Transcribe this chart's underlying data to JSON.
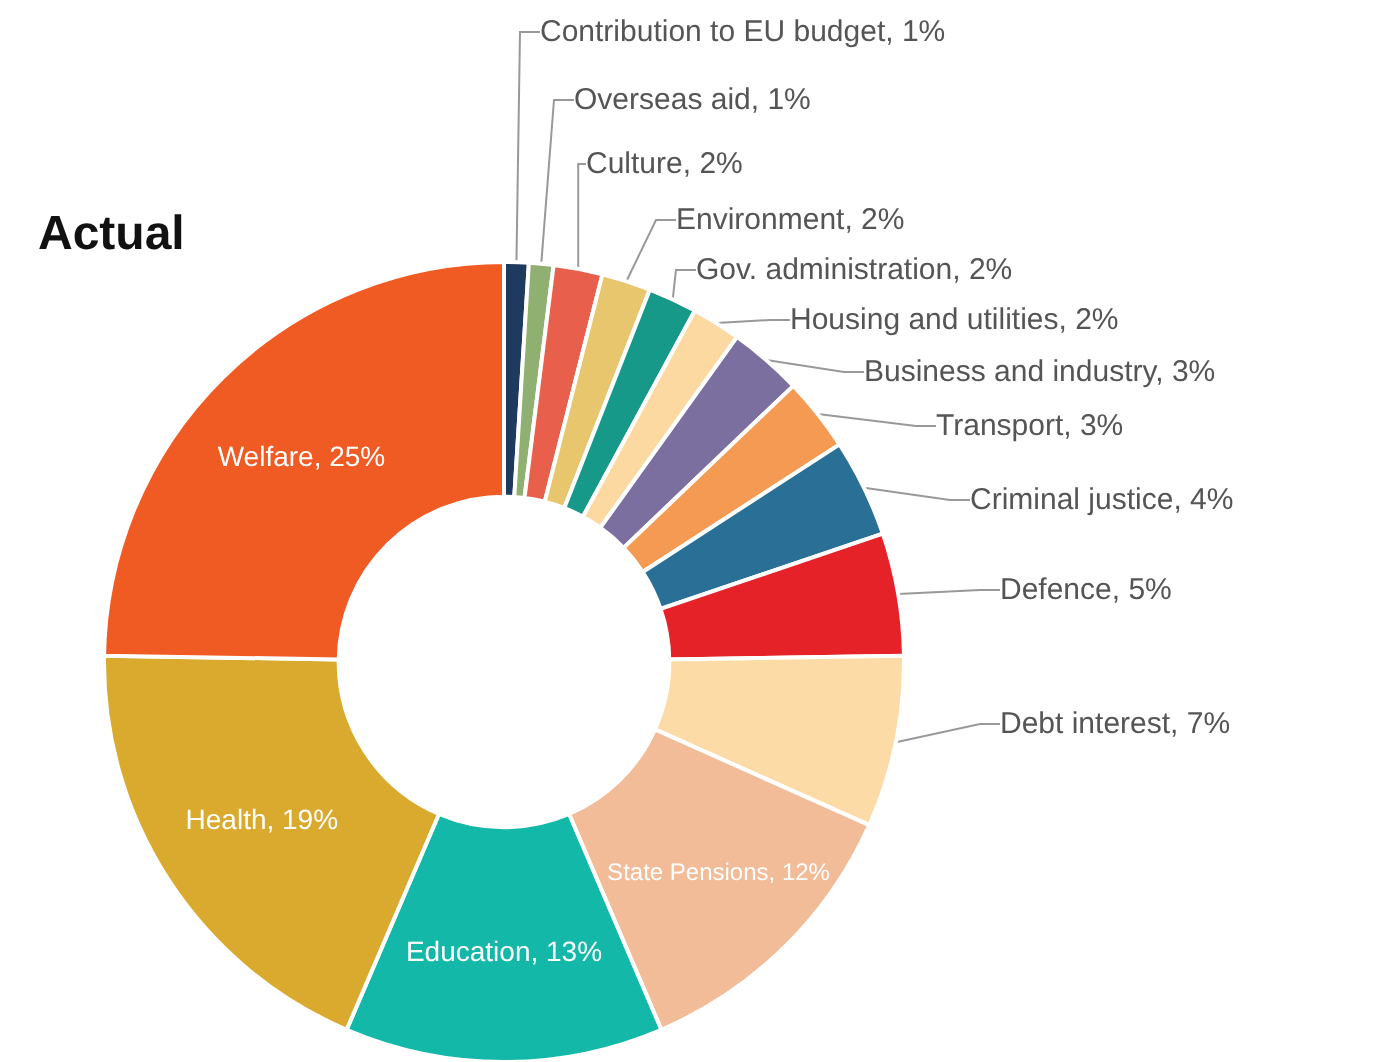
{
  "chart_data": {
    "type": "donut",
    "title": "Actual",
    "categories": [
      "Contribution to EU budget",
      "Overseas aid",
      "Culture",
      "Environment",
      "Gov. administration",
      "Housing and utilities",
      "Business and industry",
      "Transport",
      "Criminal justice",
      "Defence",
      "Debt interest",
      "State Pensions",
      "Education",
      "Health",
      "Welfare"
    ],
    "values": [
      1,
      1,
      2,
      2,
      2,
      2,
      3,
      3,
      4,
      5,
      7,
      12,
      13,
      19,
      25
    ],
    "value_labels": [
      "1%",
      "1%",
      "2%",
      "2%",
      "2%",
      "2%",
      "3%",
      "3%",
      "4%",
      "5%",
      "7%",
      "12%",
      "13%",
      "19%",
      "25%"
    ],
    "colors": [
      "#1f3a5f",
      "#8fb070",
      "#e8604c",
      "#e8c66e",
      "#17998a",
      "#fcd9a0",
      "#7b6fa0",
      "#f49a52",
      "#2a6f95",
      "#e42228",
      "#fddba6",
      "#f2bc98",
      "#14b8a8",
      "#d9aa2e",
      "#f05a23"
    ],
    "legend": false
  }
}
